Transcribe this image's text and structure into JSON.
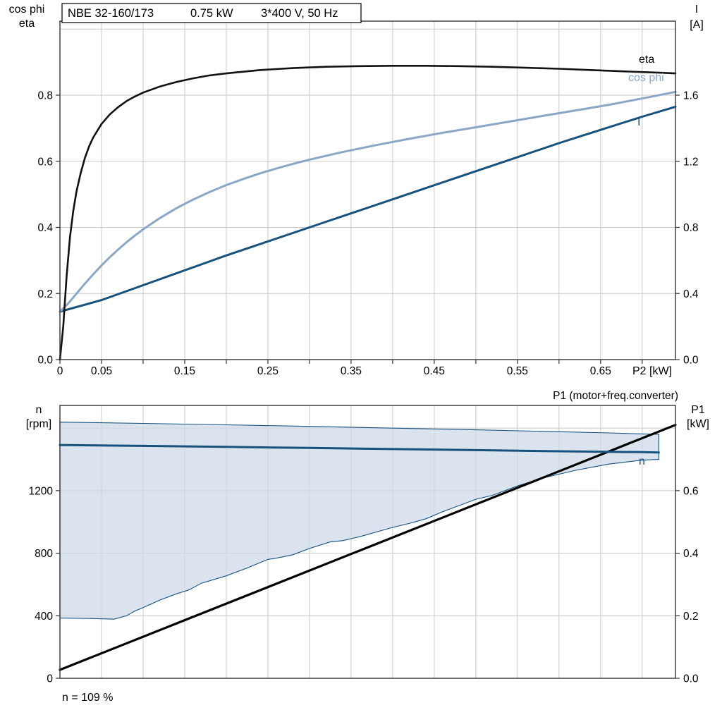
{
  "title_box": {
    "model": "NBE 32-160/173",
    "power": "0.75 kW",
    "supply": "3*400 V, 50 Hz"
  },
  "labels": {
    "top_left_axis_1": "cos phi",
    "top_left_axis_2": "eta",
    "top_right_axis_1": "I",
    "top_right_axis_2": "[A]",
    "x_axis": "P2 [kW]",
    "curve_eta": "eta",
    "curve_cosphi": "cos phi",
    "curve_current": "I",
    "bottom_left_axis_1": "n",
    "bottom_left_axis_2": "[rpm]",
    "bottom_right_axis_1": "P1",
    "bottom_right_axis_2": "[kW]",
    "p1_line_label": "P1 (motor+freq.converter)",
    "curve_n": "n",
    "speed_note": "n = 109 %"
  },
  "colors": {
    "eta": "#111111",
    "cos_phi": "#8ba6c6",
    "current": "#17517e",
    "n": "#17517e",
    "p1": "#000000",
    "area_fill": "#cdd9e8",
    "area_stroke": "#17517e",
    "grid": "#c9c9c9",
    "frame": "#333333"
  },
  "chart_data": [
    {
      "type": "line",
      "title": "NBE 32-160/173  0.75 kW  3*400 V, 50 Hz",
      "x_axis": {
        "label": "P2 [kW]",
        "min": 0,
        "max": 0.74,
        "grid_step": 0.05,
        "tick_labels": [
          "0",
          "0.05",
          "0.15",
          "0.25",
          "0.35",
          "0.45",
          "0.55",
          "0.65"
        ]
      },
      "y_left": {
        "label": "cos phi / eta",
        "min": 0,
        "max": 1.024,
        "tick_labels": [
          "0.0",
          "0.2",
          "0.4",
          "0.6",
          "0.8"
        ],
        "grid": [
          0.2,
          0.4,
          0.6,
          0.8,
          1.0
        ]
      },
      "y_right": {
        "label": "I [A]",
        "min": 0,
        "max": 2.048,
        "tick_labels": [
          "0.0",
          "0.4",
          "0.8",
          "1.2",
          "1.6"
        ]
      },
      "series": [
        {
          "name": "I",
          "axis": "right",
          "color": "#17517e",
          "width": 3,
          "points": [
            [
              0,
              0.29
            ],
            [
              0.05,
              0.36
            ],
            [
              0.1,
              0.45
            ],
            [
              0.15,
              0.54
            ],
            [
              0.2,
              0.63
            ],
            [
              0.25,
              0.715
            ],
            [
              0.3,
              0.8
            ],
            [
              0.35,
              0.885
            ],
            [
              0.4,
              0.97
            ],
            [
              0.45,
              1.055
            ],
            [
              0.5,
              1.14
            ],
            [
              0.55,
              1.225
            ],
            [
              0.6,
              1.31
            ],
            [
              0.65,
              1.39
            ],
            [
              0.7,
              1.47
            ],
            [
              0.74,
              1.53
            ]
          ]
        },
        {
          "name": "cos phi",
          "axis": "left",
          "color": "#8ba6c6",
          "width": 3,
          "points": [
            [
              0,
              0.145
            ],
            [
              0.01,
              0.17
            ],
            [
              0.02,
              0.2
            ],
            [
              0.03,
              0.23
            ],
            [
              0.04,
              0.258
            ],
            [
              0.05,
              0.285
            ],
            [
              0.06,
              0.31
            ],
            [
              0.07,
              0.333
            ],
            [
              0.08,
              0.355
            ],
            [
              0.09,
              0.375
            ],
            [
              0.1,
              0.394
            ],
            [
              0.12,
              0.428
            ],
            [
              0.14,
              0.458
            ],
            [
              0.16,
              0.484
            ],
            [
              0.18,
              0.507
            ],
            [
              0.2,
              0.528
            ],
            [
              0.22,
              0.546
            ],
            [
              0.24,
              0.563
            ],
            [
              0.26,
              0.578
            ],
            [
              0.28,
              0.592
            ],
            [
              0.3,
              0.605
            ],
            [
              0.34,
              0.628
            ],
            [
              0.38,
              0.649
            ],
            [
              0.42,
              0.668
            ],
            [
              0.46,
              0.686
            ],
            [
              0.5,
              0.703
            ],
            [
              0.54,
              0.72
            ],
            [
              0.58,
              0.737
            ],
            [
              0.62,
              0.754
            ],
            [
              0.66,
              0.771
            ],
            [
              0.7,
              0.79
            ],
            [
              0.74,
              0.81
            ]
          ]
        },
        {
          "name": "eta",
          "axis": "left",
          "color": "#111111",
          "width": 2.6,
          "points": [
            [
              0,
              0
            ],
            [
              0.004,
              0.1
            ],
            [
              0.008,
              0.25
            ],
            [
              0.012,
              0.37
            ],
            [
              0.016,
              0.45
            ],
            [
              0.02,
              0.51
            ],
            [
              0.025,
              0.565
            ],
            [
              0.03,
              0.61
            ],
            [
              0.035,
              0.645
            ],
            [
              0.04,
              0.672
            ],
            [
              0.05,
              0.713
            ],
            [
              0.06,
              0.742
            ],
            [
              0.07,
              0.764
            ],
            [
              0.08,
              0.782
            ],
            [
              0.09,
              0.796
            ],
            [
              0.1,
              0.808
            ],
            [
              0.12,
              0.826
            ],
            [
              0.14,
              0.84
            ],
            [
              0.16,
              0.851
            ],
            [
              0.18,
              0.86
            ],
            [
              0.2,
              0.866
            ],
            [
              0.24,
              0.876
            ],
            [
              0.28,
              0.882
            ],
            [
              0.32,
              0.886
            ],
            [
              0.36,
              0.888
            ],
            [
              0.4,
              0.889
            ],
            [
              0.44,
              0.889
            ],
            [
              0.48,
              0.888
            ],
            [
              0.52,
              0.886
            ],
            [
              0.56,
              0.883
            ],
            [
              0.6,
              0.88
            ],
            [
              0.64,
              0.876
            ],
            [
              0.68,
              0.872
            ],
            [
              0.72,
              0.868
            ],
            [
              0.74,
              0.866
            ]
          ]
        }
      ]
    },
    {
      "type": "line+area",
      "x_axis": {
        "label": "",
        "min": 0,
        "max": 0.74,
        "grid_step": 0.05
      },
      "y_left": {
        "label": "n [rpm]",
        "min": 0,
        "max": 1745,
        "tick_labels": [
          "0",
          "400",
          "800",
          "1200"
        ],
        "grid": [
          400,
          800,
          1200,
          1600
        ]
      },
      "y_right": {
        "label": "P1 [kW]",
        "min": 0,
        "max": 0.8725,
        "tick_labels": [
          "0.0",
          "0.2",
          "0.4",
          "0.6"
        ]
      },
      "area": {
        "name": "speed-operating-range",
        "fill": "#cdd9e8",
        "stroke": "#17517e",
        "upper": [
          [
            0,
            1638
          ],
          [
            0.1,
            1630
          ],
          [
            0.2,
            1621
          ],
          [
            0.3,
            1611
          ],
          [
            0.4,
            1600
          ],
          [
            0.5,
            1589
          ],
          [
            0.6,
            1577
          ],
          [
            0.66,
            1569
          ],
          [
            0.7,
            1563
          ],
          [
            0.72,
            1560
          ]
        ],
        "lower": [
          [
            0,
            385
          ],
          [
            0.04,
            382
          ],
          [
            0.065,
            378
          ],
          [
            0.08,
            400
          ],
          [
            0.09,
            430
          ],
          [
            0.1,
            452
          ],
          [
            0.12,
            500
          ],
          [
            0.14,
            540
          ],
          [
            0.155,
            565
          ],
          [
            0.17,
            608
          ],
          [
            0.2,
            655
          ],
          [
            0.225,
            705
          ],
          [
            0.25,
            760
          ],
          [
            0.26,
            768
          ],
          [
            0.28,
            790
          ],
          [
            0.3,
            830
          ],
          [
            0.325,
            872
          ],
          [
            0.34,
            880
          ],
          [
            0.36,
            905
          ],
          [
            0.4,
            965
          ],
          [
            0.42,
            990
          ],
          [
            0.44,
            1020
          ],
          [
            0.46,
            1065
          ],
          [
            0.5,
            1145
          ],
          [
            0.52,
            1170
          ],
          [
            0.55,
            1230
          ],
          [
            0.58,
            1280
          ],
          [
            0.62,
            1330
          ],
          [
            0.66,
            1370
          ],
          [
            0.7,
            1395
          ],
          [
            0.72,
            1400
          ]
        ]
      },
      "series": [
        {
          "name": "P1 (motor+freq.converter)",
          "axis": "right",
          "color": "#000000",
          "width": 3.2,
          "points": [
            [
              0,
              0.027
            ],
            [
              0.74,
              0.81
            ]
          ]
        },
        {
          "name": "n",
          "axis": "left",
          "color": "#17517e",
          "width": 3,
          "points": [
            [
              0,
              1492
            ],
            [
              0.1,
              1486
            ],
            [
              0.2,
              1480
            ],
            [
              0.3,
              1473
            ],
            [
              0.4,
              1466
            ],
            [
              0.5,
              1459
            ],
            [
              0.6,
              1452
            ],
            [
              0.7,
              1446
            ],
            [
              0.72,
              1444
            ]
          ]
        }
      ],
      "annotation": "n = 109 %"
    }
  ]
}
